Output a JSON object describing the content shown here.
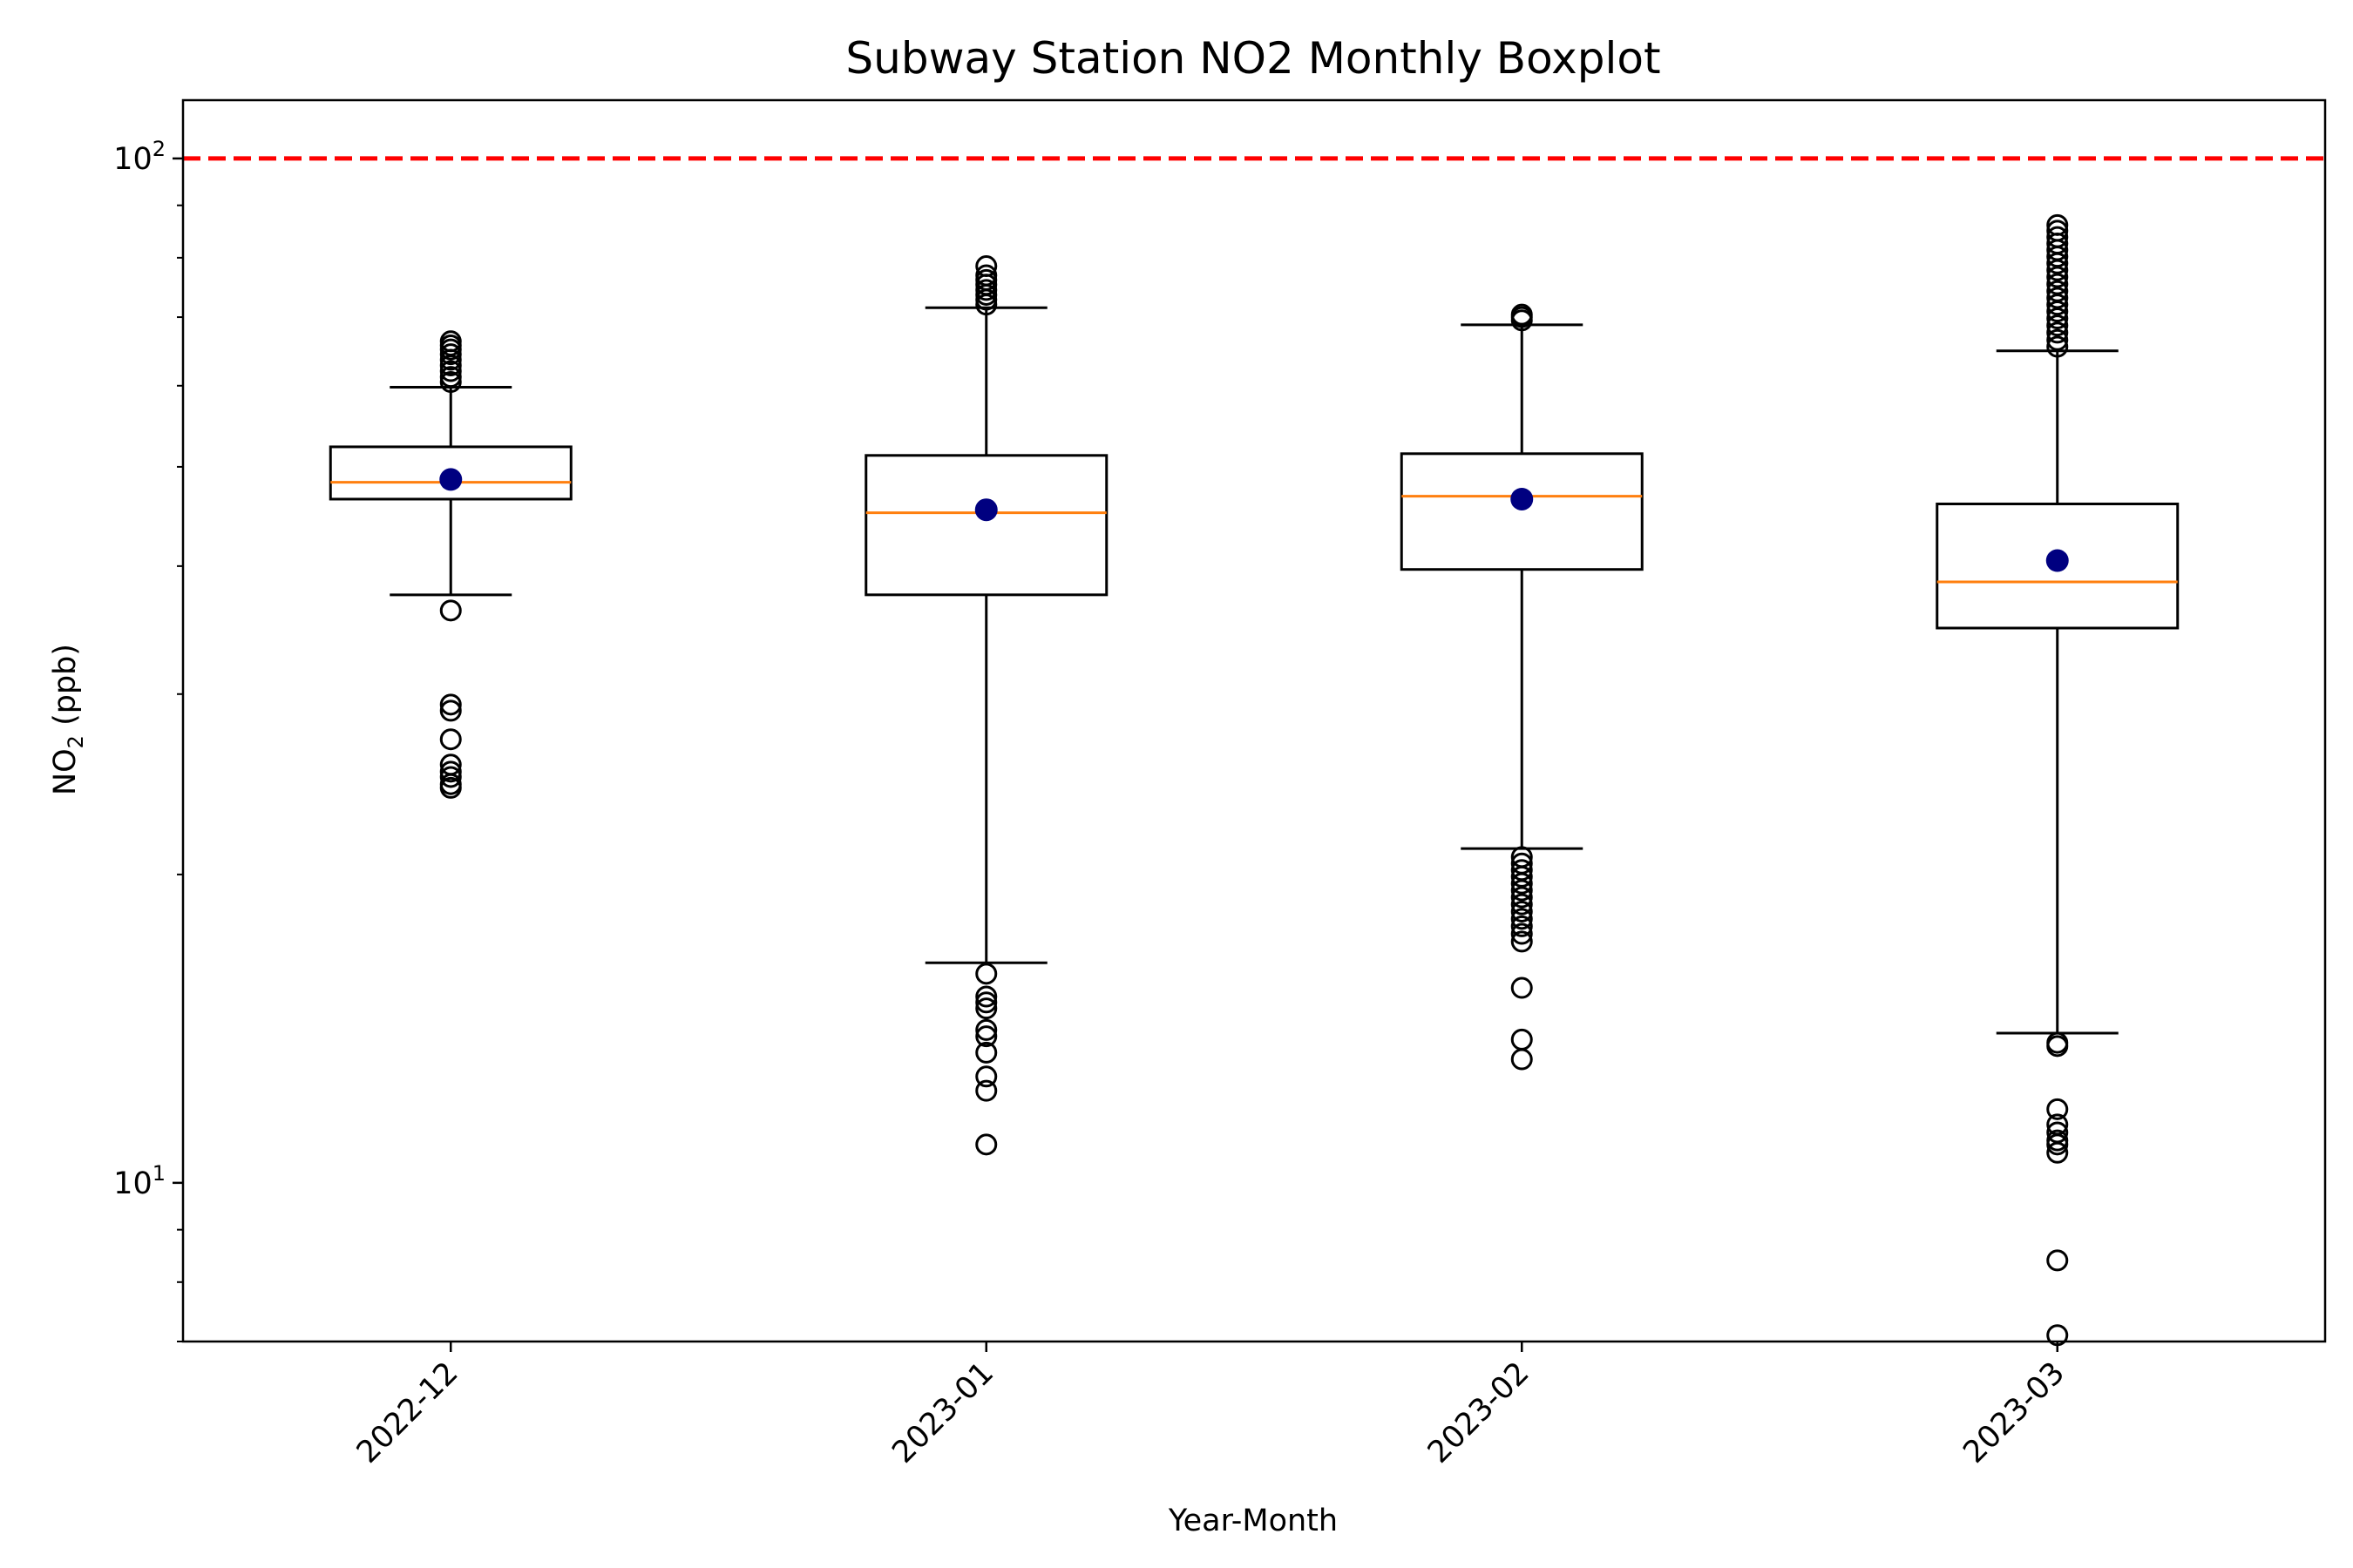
{
  "chart_data": {
    "type": "boxplot",
    "title": "Subway Station NO2 Monthly Boxplot",
    "xlabel": "Year-Month",
    "ylabel_main": "NO",
    "ylabel_sub": "2",
    "ylabel_unit": " (ppb)",
    "yscale": "log",
    "ylim": [
      7.0,
      114.0
    ],
    "y_tick_labels": [
      {
        "value": 10,
        "base": "10",
        "exp": "1"
      },
      {
        "value": 100,
        "base": "10",
        "exp": "2"
      }
    ],
    "x_tick_rotation": 45,
    "reference_line": {
      "value": 100,
      "color": "#ff0000",
      "style": "dashed"
    },
    "colors": {
      "box": "#000000",
      "median": "#ff7f0e",
      "mean": "#000080",
      "flier": "#000000"
    },
    "categories": [
      "2022-12",
      "2023-01",
      "2023-02",
      "2023-03"
    ],
    "boxes": [
      {
        "label": "2022-12",
        "whislo": 37.5,
        "q1": 46.5,
        "median": 48.3,
        "q3": 52.3,
        "whishi": 59.8,
        "mean": 48.6,
        "fliers": [
          36.2,
          29.3,
          28.9,
          27.1,
          25.6,
          25.2,
          24.9,
          24.5,
          24.3,
          60.5,
          61.2,
          62.0,
          62.8,
          63.6,
          64.4,
          65.1,
          65.7,
          66.3
        ]
      },
      {
        "label": "2023-01",
        "whislo": 16.4,
        "q1": 37.5,
        "median": 45.1,
        "q3": 51.3,
        "whishi": 71.5,
        "mean": 45.4,
        "fliers": [
          16.0,
          15.2,
          15.0,
          14.8,
          14.1,
          13.9,
          13.4,
          12.7,
          12.3,
          10.9,
          72.0,
          72.8,
          73.6,
          74.4,
          75.3,
          76.1,
          76.9,
          78.5
        ]
      },
      {
        "label": "2023-02",
        "whislo": 21.2,
        "q1": 39.7,
        "median": 46.8,
        "q3": 51.5,
        "whishi": 68.8,
        "mean": 46.5,
        "fliers": [
          20.8,
          20.5,
          20.2,
          19.9,
          19.6,
          19.3,
          19.0,
          18.7,
          18.4,
          18.1,
          17.8,
          17.5,
          17.2,
          15.5,
          13.8,
          13.2,
          69.5,
          70.0,
          70.4
        ]
      },
      {
        "label": "2023-03",
        "whislo": 14.0,
        "q1": 34.8,
        "median": 38.6,
        "q3": 46.0,
        "whishi": 64.9,
        "mean": 40.5,
        "fliers": [
          13.7,
          13.6,
          11.8,
          11.4,
          11.2,
          11.0,
          10.9,
          10.7,
          8.4,
          7.1,
          65.5,
          66.5,
          67.6,
          68.7,
          69.8,
          70.9,
          72.0,
          73.1,
          74.2,
          75.4,
          76.6,
          77.8,
          79.0,
          80.2,
          81.4,
          82.6,
          83.8,
          85.0,
          86.1
        ]
      }
    ]
  }
}
